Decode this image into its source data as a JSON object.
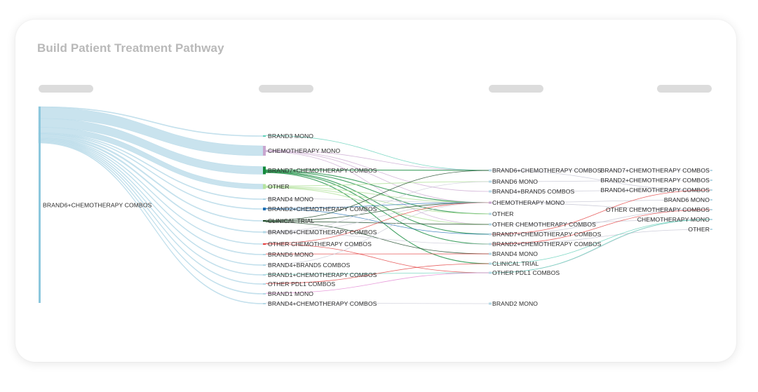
{
  "header": {
    "title": "Build Patient Treatment Pathway"
  },
  "colors": {
    "source_flow": "#bfdeeb",
    "source_node": "#8cc7dd",
    "node_default": "#b4d8e6",
    "mono": "#c9a6cf",
    "combo_green": "#138a3c",
    "light_green": "#b6e3a1",
    "trial": "#103f1c",
    "brand2_combo": "#1f6fb4",
    "other_chemo": "#e23b3b",
    "teal": "#5fd0b8",
    "pink": "#e284d2",
    "link_grey": "#c9c9d6"
  },
  "pathway": {
    "column_headers": [
      "",
      "",
      "",
      ""
    ],
    "source": {
      "label": "BRAND6+CHEMOTHERAPY COMBOS"
    },
    "second_line": [
      {
        "label": "BRAND3 MONO",
        "color_key": "teal"
      },
      {
        "label": "CHEMOTHERAPY MONO",
        "color_key": "mono"
      },
      {
        "label": "BRAND7+CHEMOTHERAPY COMBOS",
        "color_key": "combo_green"
      },
      {
        "label": "OTHER",
        "color_key": "light_green"
      },
      {
        "label": "BRAND4 MONO",
        "color_key": "node_default"
      },
      {
        "label": "BRAND2+CHEMOTHERAPY COMBOS",
        "color_key": "brand2_combo"
      },
      {
        "label": "CLINICAL TRIAL",
        "color_key": "trial"
      },
      {
        "label": "BRAND6+CHEMOTHERAPY COMBOS",
        "color_key": "node_default"
      },
      {
        "label": "OTHER CHEMOTHERAPY COMBOS",
        "color_key": "other_chemo"
      },
      {
        "label": "BRAND6 MONO",
        "color_key": "node_default"
      },
      {
        "label": "BRAND4+BRAND5 COMBOS",
        "color_key": "node_default"
      },
      {
        "label": "BRAND1+CHEMOTHERAPY COMBOS",
        "color_key": "node_default"
      },
      {
        "label": "OTHER PDL1 COMBOS",
        "color_key": "node_default"
      },
      {
        "label": "BRAND1 MONO",
        "color_key": "node_default"
      },
      {
        "label": "BRAND4+CHEMOTHERAPY COMBOS",
        "color_key": "node_default"
      }
    ],
    "third_line": [
      {
        "label": "BRAND6+CHEMOTHERAPY COMBOS",
        "color_key": "node_default"
      },
      {
        "label": "BRAND6 MONO",
        "color_key": "node_default"
      },
      {
        "label": "BRAND4+BRAND5 COMBOS",
        "color_key": "node_default"
      },
      {
        "label": "CHEMOTHERAPY MONO",
        "color_key": "mono"
      },
      {
        "label": "OTHER",
        "color_key": "node_default"
      },
      {
        "label": "OTHER CHEMOTHERAPY COMBOS",
        "color_key": "node_default"
      },
      {
        "label": "BRAND7+CHEMOTHERAPY COMBOS",
        "color_key": "node_default"
      },
      {
        "label": "BRAND2+CHEMOTHERAPY COMBOS",
        "color_key": "node_default"
      },
      {
        "label": "BRAND4 MONO",
        "color_key": "node_default"
      },
      {
        "label": "CLINICAL TRIAL",
        "color_key": "node_default"
      },
      {
        "label": "OTHER PDL1 COMBOS",
        "color_key": "node_default"
      },
      {
        "label": "BRAND2 MONO",
        "color_key": "node_default"
      }
    ],
    "fourth_line": [
      {
        "label": "BRAND7+CHEMOTHERAPY COMBOS"
      },
      {
        "label": "BRAND2+CHEMOTHERAPY COMBOS"
      },
      {
        "label": "BRAND6+CHEMOTHERAPY COMBOS"
      },
      {
        "label": "BRAND6 MONO"
      },
      {
        "label": "OTHER CHEMOTHERAPY COMBOS"
      },
      {
        "label": "CHEMOTHERAPY MONO"
      },
      {
        "label": "OTHER"
      }
    ],
    "links_1_2": [
      {
        "to": 0,
        "value": 1
      },
      {
        "to": 1,
        "value": 14
      },
      {
        "to": 2,
        "value": 11
      },
      {
        "to": 3,
        "value": 7
      },
      {
        "to": 4,
        "value": 1
      },
      {
        "to": 5,
        "value": 1
      },
      {
        "to": 6,
        "value": 2
      },
      {
        "to": 7,
        "value": 2
      },
      {
        "to": 8,
        "value": 1
      },
      {
        "to": 9,
        "value": 1
      },
      {
        "to": 10,
        "value": 1
      },
      {
        "to": 11,
        "value": 1
      },
      {
        "to": 12,
        "value": 1
      },
      {
        "to": 13,
        "value": 1
      },
      {
        "to": 14,
        "value": 1
      }
    ],
    "links_2_3": [
      {
        "from": 0,
        "to": 0,
        "color_key": "teal"
      },
      {
        "from": 1,
        "to": 0,
        "color_key": "mono"
      },
      {
        "from": 1,
        "to": 2,
        "color_key": "mono"
      },
      {
        "from": 1,
        "to": 3,
        "color_key": "mono"
      },
      {
        "from": 1,
        "to": 5,
        "color_key": "mono"
      },
      {
        "from": 2,
        "to": 0,
        "color_key": "combo_green"
      },
      {
        "from": 2,
        "to": 3,
        "color_key": "combo_green"
      },
      {
        "from": 2,
        "to": 4,
        "color_key": "combo_green"
      },
      {
        "from": 2,
        "to": 6,
        "color_key": "combo_green"
      },
      {
        "from": 2,
        "to": 7,
        "color_key": "combo_green"
      },
      {
        "from": 2,
        "to": 9,
        "color_key": "combo_green"
      },
      {
        "from": 3,
        "to": 1,
        "color_key": "light_green"
      },
      {
        "from": 3,
        "to": 3,
        "color_key": "light_green"
      },
      {
        "from": 3,
        "to": 4,
        "color_key": "light_green"
      },
      {
        "from": 3,
        "to": 5,
        "color_key": "light_green"
      },
      {
        "from": 4,
        "to": 3,
        "color_key": "link_grey"
      },
      {
        "from": 5,
        "to": 3,
        "color_key": "brand2_combo"
      },
      {
        "from": 5,
        "to": 6,
        "color_key": "brand2_combo"
      },
      {
        "from": 6,
        "to": 0,
        "color_key": "trial"
      },
      {
        "from": 6,
        "to": 3,
        "color_key": "trial"
      },
      {
        "from": 6,
        "to": 5,
        "color_key": "trial"
      },
      {
        "from": 6,
        "to": 8,
        "color_key": "trial"
      },
      {
        "from": 7,
        "to": 1,
        "color_key": "link_grey"
      },
      {
        "from": 7,
        "to": 3,
        "color_key": "link_grey"
      },
      {
        "from": 7,
        "to": 7,
        "color_key": "link_grey"
      },
      {
        "from": 8,
        "to": 3,
        "color_key": "other_chemo"
      },
      {
        "from": 8,
        "to": 10,
        "color_key": "other_chemo"
      },
      {
        "from": 9,
        "to": 8,
        "color_key": "other_chemo"
      },
      {
        "from": 10,
        "to": 3,
        "color_key": "link_grey"
      },
      {
        "from": 11,
        "to": 10,
        "color_key": "teal"
      },
      {
        "from": 12,
        "to": 9,
        "color_key": "other_chemo"
      },
      {
        "from": 13,
        "to": 10,
        "color_key": "pink"
      },
      {
        "from": 14,
        "to": 11,
        "color_key": "link_grey"
      }
    ],
    "links_3_4": [
      {
        "from": 0,
        "to": 0
      },
      {
        "from": 0,
        "to": 2
      },
      {
        "from": 1,
        "to": 1
      },
      {
        "from": 3,
        "to": 3
      },
      {
        "from": 3,
        "to": 4
      },
      {
        "from": 5,
        "to": 5
      },
      {
        "from": 6,
        "to": 4
      },
      {
        "from": 7,
        "to": 6
      },
      {
        "from": 10,
        "to": 5
      },
      {
        "from": 2,
        "to": 2
      }
    ]
  }
}
